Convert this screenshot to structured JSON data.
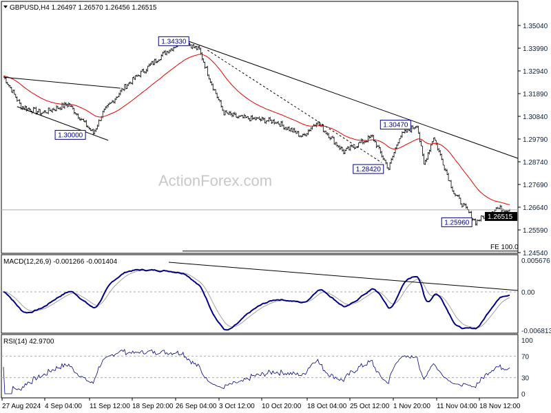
{
  "header": {
    "symbol": "GBPUSD,H4",
    "open": "1.26497",
    "high": "1.26570",
    "low": "1.26456",
    "close": "1.26515"
  },
  "watermark": "ActionForex.com",
  "colors": {
    "bars": "#000000",
    "ma": "#e00000",
    "macd": "#000080",
    "signal": "#a0a0a0",
    "price_tag_bg": "#000000"
  },
  "chart_data": [
    {
      "type": "ohlc",
      "name": "GBPUSD,H4",
      "y_ticks": [
        "1.35040",
        "1.33990",
        "1.32940",
        "1.31890",
        "1.30840",
        "1.29790",
        "1.28740",
        "1.27690",
        "1.26640",
        "1.25590",
        "1.24540"
      ],
      "ylim": [
        1.2454,
        1.3504
      ],
      "current_price": "1.26515",
      "price_path": [
        [
          0,
          1.327
        ],
        [
          13,
          1.313
        ],
        [
          28,
          1.31
        ],
        [
          48,
          1.314
        ],
        [
          66,
          1.3005
        ],
        [
          73,
          1.31
        ],
        [
          89,
          1.322
        ],
        [
          104,
          1.33
        ],
        [
          119,
          1.338
        ],
        [
          132,
          1.3433
        ],
        [
          144,
          1.339
        ],
        [
          152,
          1.325
        ],
        [
          162,
          1.31
        ],
        [
          172,
          1.308
        ],
        [
          200,
          1.306
        ],
        [
          220,
          1.299
        ],
        [
          230,
          1.306
        ],
        [
          250,
          1.292
        ],
        [
          271,
          1.299
        ],
        [
          283,
          1.2842
        ],
        [
          291,
          1.299
        ],
        [
          304,
          1.3047
        ],
        [
          309,
          1.286
        ],
        [
          316,
          1.299
        ],
        [
          331,
          1.273
        ],
        [
          347,
          1.2596
        ],
        [
          362,
          1.266
        ],
        [
          372,
          1.26515
        ]
      ],
      "annotations": [
        {
          "text": "1.34330",
          "bar": 114,
          "price": 1.3433
        },
        {
          "text": "1.30000",
          "bar": 38,
          "price": 1.3
        },
        {
          "text": "1.28420",
          "bar": 257,
          "price": 1.2842
        },
        {
          "text": "1.30470",
          "bar": 277,
          "price": 1.3047
        },
        {
          "text": "1.25960",
          "bar": 322,
          "price": 1.2596
        }
      ],
      "trendlines": [
        {
          "from": [
            132,
            1.344
          ],
          "to": [
            378,
            1.289
          ],
          "style": "solid"
        },
        {
          "from": [
            0,
            1.3265
          ],
          "to": [
            86,
            1.3214
          ],
          "style": "solid"
        },
        {
          "from": [
            10,
            1.3129
          ],
          "to": [
            77,
            1.2973
          ],
          "style": "solid"
        },
        {
          "from": [
            150,
            1.339
          ],
          "to": [
            278,
            1.287
          ],
          "style": "dashed"
        }
      ],
      "fe_label": "FE 100.0",
      "fe_price": 1.2461,
      "x_ticks": [
        "27 Aug 2024",
        "4 Sep 04:00",
        "11 Sep 12:00",
        "18 Sep 20:00",
        "26 Sep 04:00",
        "3 Oct 12:00",
        "10 Oct 20:00",
        "18 Oct 04:00",
        "25 Oct 12:00",
        "1 Nov 20:00",
        "11 Nov 04:00",
        "18 Nov 12:00"
      ]
    },
    {
      "type": "line",
      "name": "MACD(12,26,9) -0.001266 -0.001404",
      "label": "MACD(12,26,9)",
      "values_text": "-0.001266 -0.001404",
      "y_ticks": [
        "0.005676",
        "0.00",
        "-0.006813"
      ],
      "ylim": [
        -0.006813,
        0.005676
      ]
    },
    {
      "type": "line",
      "name": "RSI(14) 42.9700",
      "label": "RSI(14)",
      "values_text": "42.9700",
      "y_ticks": [
        "100",
        "70",
        "30",
        "0"
      ],
      "ylim": [
        0,
        100
      ]
    }
  ]
}
